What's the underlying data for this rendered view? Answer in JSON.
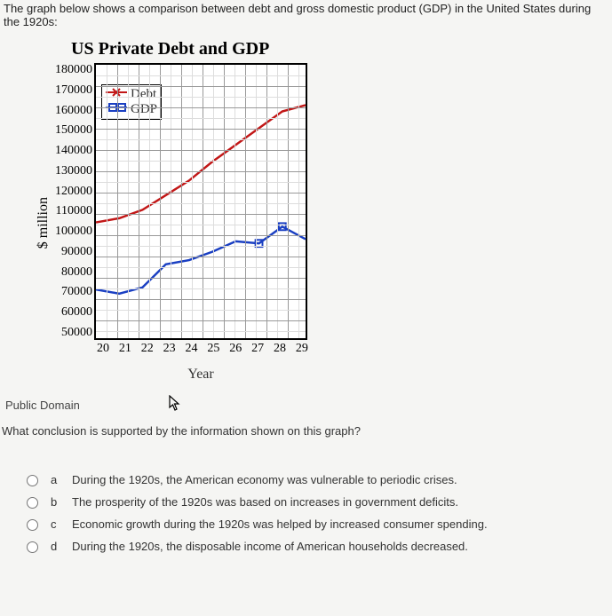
{
  "intro": "The graph below shows a comparison between debt and gross domestic product (GDP) in the United States during the 1920s:",
  "chart": {
    "type": "line",
    "title": "US Private Debt and GDP",
    "ylabel": "$ million",
    "xlabel": "Year",
    "title_fontsize": 20,
    "label_fontsize": 16,
    "tick_fontsize": 14,
    "background_color": "#ffffff",
    "grid_color": "#bbbbbb",
    "axis_color": "#000000",
    "ylim": [
      50000,
      180000
    ],
    "ytick_step": 10000,
    "yticks": [
      180000,
      170000,
      160000,
      150000,
      140000,
      130000,
      120000,
      110000,
      100000,
      90000,
      80000,
      70000,
      60000,
      50000
    ],
    "xlim": [
      20,
      29
    ],
    "xticks": [
      20,
      21,
      22,
      23,
      24,
      25,
      26,
      27,
      28,
      29
    ],
    "grid_minor_v": 20,
    "grid_minor_h": 26,
    "series": [
      {
        "name": "Debt",
        "color": "#c21717",
        "line_width": 2.5,
        "marker": "x",
        "x": [
          20,
          21,
          22,
          23,
          24,
          25,
          26,
          27,
          28,
          29
        ],
        "y": [
          105000,
          107000,
          111000,
          118000,
          125000,
          134000,
          142000,
          150000,
          158000,
          161000
        ]
      },
      {
        "name": "GDP",
        "color": "#1a3fc2",
        "line_width": 2.5,
        "marker": "square-open",
        "x": [
          20,
          21,
          22,
          23,
          24,
          25,
          26,
          27,
          28,
          29
        ],
        "y": [
          73000,
          71000,
          74000,
          85000,
          87000,
          91000,
          96000,
          95000,
          103000,
          97000
        ]
      }
    ],
    "legend": {
      "position": "upper-left-inside",
      "border_color": "#000000",
      "items": [
        {
          "label": "Debt",
          "color": "#c21717",
          "marker": "x"
        },
        {
          "label": "GDP",
          "color": "#1a3fc2",
          "marker": "square-open"
        }
      ]
    }
  },
  "caption": "Public Domain",
  "question": "What conclusion is supported by the information shown on this graph?",
  "options": [
    {
      "letter": "a",
      "text": "During the 1920s, the American economy was vulnerable to periodic crises."
    },
    {
      "letter": "b",
      "text": "The prosperity of the 1920s was based on increases in government deficits."
    },
    {
      "letter": "c",
      "text": "Economic growth during the 1920s was helped by increased consumer spending."
    },
    {
      "letter": "d",
      "text": "During the 1920s, the disposable income of American households decreased."
    }
  ]
}
